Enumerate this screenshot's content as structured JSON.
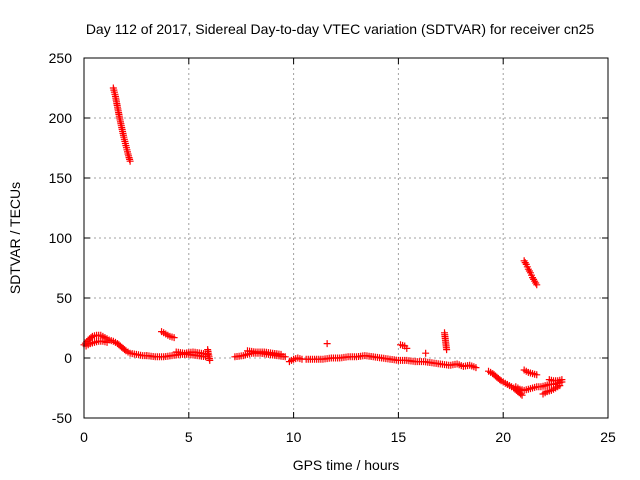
{
  "chart_data": {
    "type": "scatter",
    "title": "Day 112 of 2017, Sidereal Day-to-day VTEC variation (SDTVAR) for receiver cn25",
    "xlabel": "GPS time / hours",
    "ylabel": "SDTVAR / TECUs",
    "xlim": [
      0,
      25
    ],
    "ylim": [
      -50,
      250
    ],
    "xticks": [
      0,
      5,
      10,
      15,
      20,
      25
    ],
    "yticks": [
      -50,
      0,
      50,
      100,
      150,
      200,
      250
    ],
    "grid": true,
    "marker": "+",
    "color": "#ff0000",
    "series": [
      {
        "name": "SDTVAR",
        "segments": [
          {
            "x": [
              0.0,
              0.2,
              0.4,
              0.6,
              0.8,
              1.0,
              1.2,
              1.4,
              1.6,
              1.8,
              2.0,
              2.2,
              2.5,
              2.8,
              3.0
            ],
            "y": [
              11,
              15,
              18,
              19,
              19,
              17,
              15,
              14,
              12,
              9,
              6,
              4,
              3,
              2,
              2
            ]
          },
          {
            "x": [
              0.1,
              0.3,
              0.5,
              0.7,
              0.9,
              1.1
            ],
            "y": [
              10,
              12,
              13,
              14,
              14,
              13
            ]
          },
          {
            "x": [
              1.4,
              1.5,
              1.6,
              1.7,
              1.8,
              1.9,
              2.0,
              2.1,
              2.2
            ],
            "y": [
              225,
              218,
              209,
              200,
              192,
              184,
              177,
              170,
              164
            ]
          },
          {
            "x": [
              3.0,
              3.4,
              3.8,
              4.2,
              4.6,
              5.0,
              5.4,
              5.8
            ],
            "y": [
              2,
              1,
              1,
              2,
              3,
              3,
              2,
              1
            ]
          },
          {
            "x": [
              3.7,
              3.9,
              4.1,
              4.3
            ],
            "y": [
              22,
              20,
              18,
              17
            ]
          },
          {
            "x": [
              4.4,
              4.8,
              5.2,
              5.6,
              5.9
            ],
            "y": [
              5,
              4,
              5,
              4,
              3
            ]
          },
          {
            "x": [
              5.9,
              6.0
            ],
            "y": [
              7,
              -2
            ]
          },
          {
            "x": [
              7.2,
              7.6,
              8.0,
              8.4,
              8.8,
              9.2,
              9.6
            ],
            "y": [
              1,
              2,
              4,
              4,
              3,
              2,
              1
            ]
          },
          {
            "x": [
              7.8,
              8.2,
              8.6,
              9.0,
              9.4
            ],
            "y": [
              6,
              5,
              5,
              4,
              3
            ]
          },
          {
            "x": [
              9.8,
              10.0,
              10.2,
              10.4
            ],
            "y": [
              -3,
              -1,
              0,
              -1
            ]
          },
          {
            "x": [
              10.6,
              11.0,
              11.4,
              11.8,
              12.2,
              12.6,
              13.0,
              13.4,
              13.8,
              14.2,
              14.6,
              15.0,
              15.4,
              15.8,
              16.2,
              16.6,
              17.0,
              17.4
            ],
            "y": [
              -1,
              -1,
              -1,
              0,
              0,
              1,
              1,
              2,
              1,
              0,
              -1,
              -2,
              -2,
              -3,
              -3,
              -4,
              -5,
              -6
            ]
          },
          {
            "x": [
              11.6
            ],
            "y": [
              12
            ]
          },
          {
            "x": [
              15.1,
              15.3,
              15.4
            ],
            "y": [
              11,
              10,
              8
            ]
          },
          {
            "x": [
              16.3
            ],
            "y": [
              4
            ]
          },
          {
            "x": [
              17.2,
              17.3
            ],
            "y": [
              21,
              7
            ]
          },
          {
            "x": [
              17.5,
              17.8,
              18.1,
              18.4,
              18.7
            ],
            "y": [
              -6,
              -5,
              -7,
              -6,
              -8
            ]
          },
          {
            "x": [
              19.3,
              19.5,
              19.7,
              19.9,
              20.1,
              20.3,
              20.5,
              20.7,
              20.9
            ],
            "y": [
              -11,
              -13,
              -16,
              -19,
              -21,
              -23,
              -25,
              -28,
              -31
            ]
          },
          {
            "x": [
              21.0,
              21.1,
              21.2,
              21.3,
              21.4,
              21.5,
              21.6
            ],
            "y": [
              81,
              78,
              74,
              71,
              67,
              64,
              61
            ]
          },
          {
            "x": [
              21.0,
              21.2,
              21.4,
              21.6
            ],
            "y": [
              -10,
              -12,
              -13,
              -14
            ]
          },
          {
            "x": [
              20.6,
              20.8,
              21.0,
              21.2,
              21.4,
              21.6,
              21.8,
              22.0,
              22.2,
              22.4,
              22.6,
              22.8
            ],
            "y": [
              -24,
              -26,
              -27,
              -26,
              -25,
              -24,
              -24,
              -23,
              -22,
              -22,
              -21,
              -20
            ]
          },
          {
            "x": [
              21.9,
              22.1,
              22.3,
              22.5,
              22.7
            ],
            "y": [
              -30,
              -28,
              -27,
              -25,
              -23
            ]
          },
          {
            "x": [
              22.2,
              22.4,
              22.6,
              22.8
            ],
            "y": [
              -18,
              -19,
              -19,
              -18
            ]
          }
        ]
      }
    ]
  }
}
